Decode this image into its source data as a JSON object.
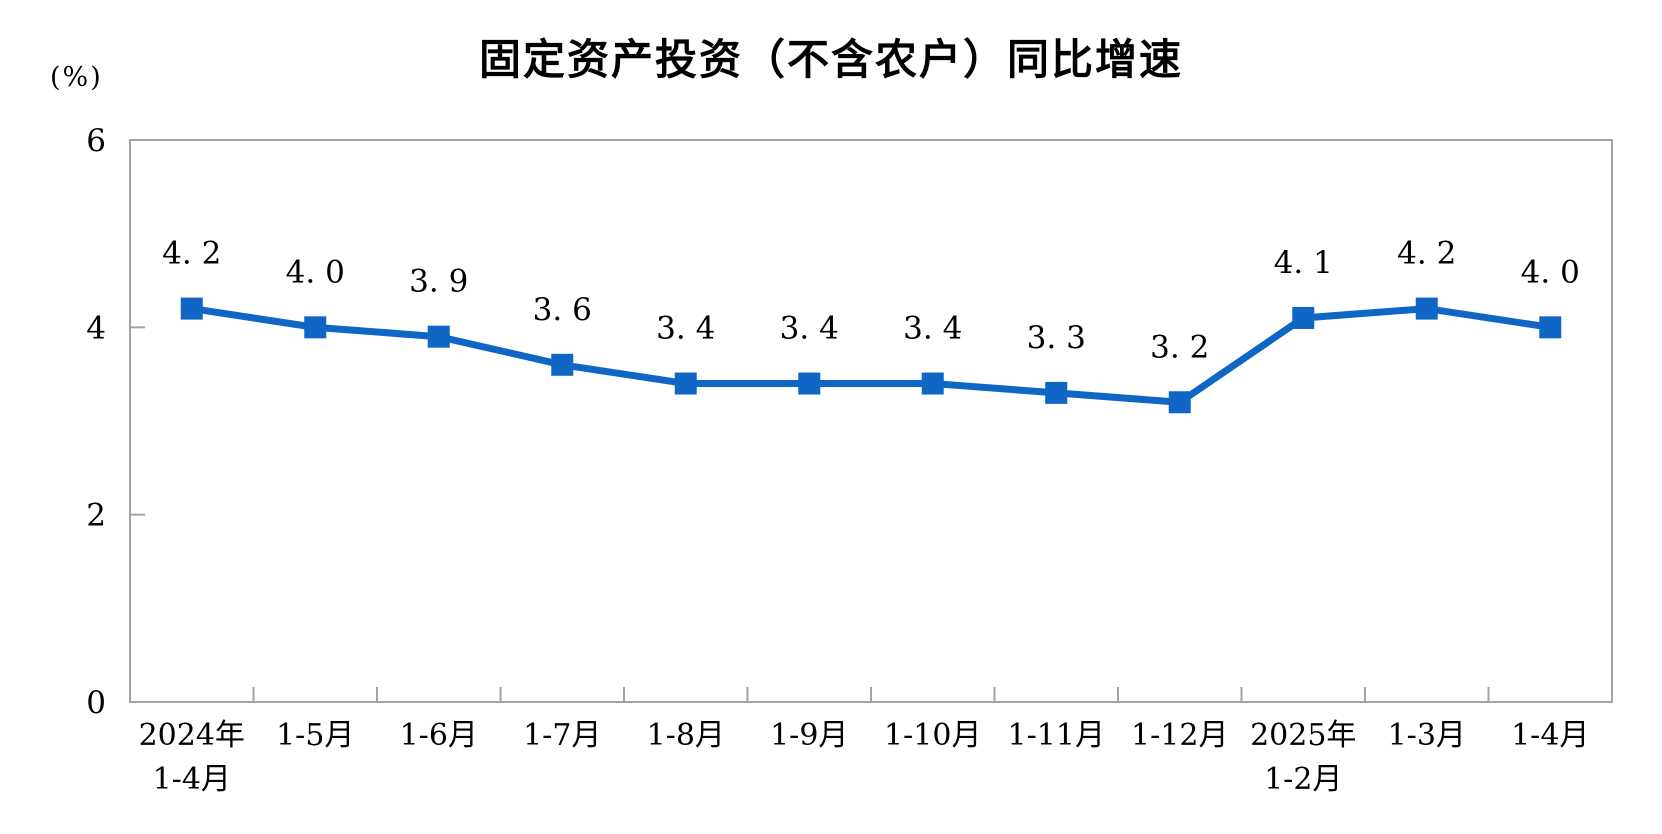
{
  "chart_data": {
    "type": "line",
    "title": "固定资产投资（不含农户）同比增速",
    "unit_label": "(%)",
    "categories": [
      [
        "2024年",
        "1-4月"
      ],
      [
        "1-5月"
      ],
      [
        "1-6月"
      ],
      [
        "1-7月"
      ],
      [
        "1-8月"
      ],
      [
        "1-9月"
      ],
      [
        "1-10月"
      ],
      [
        "1-11月"
      ],
      [
        "1-12月"
      ],
      [
        "2025年",
        "1-2月"
      ],
      [
        "1-3月"
      ],
      [
        "1-4月"
      ]
    ],
    "values": [
      4.2,
      4.0,
      3.9,
      3.6,
      3.4,
      3.4,
      3.4,
      3.3,
      3.2,
      4.1,
      4.2,
      4.0
    ],
    "value_labels": [
      "4. 2",
      "4. 0",
      "3. 9",
      "3. 6",
      "3. 4",
      "3. 4",
      "3. 4",
      "3. 3",
      "3. 2",
      "4. 1",
      "4. 2",
      "4. 0"
    ],
    "xlabel": "",
    "ylabel": "(%)",
    "ylim": [
      0,
      6
    ],
    "yticks": [
      0,
      2,
      4,
      6
    ],
    "grid": false,
    "legend_position": "none",
    "marker": "square",
    "line_color": "#0f66c4",
    "axis_color": "#a3a3a3",
    "text_color": "#000000"
  }
}
